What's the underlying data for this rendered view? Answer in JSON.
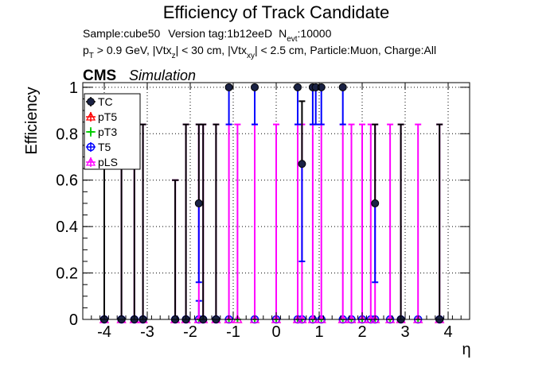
{
  "chart_data": {
    "type": "scatter",
    "title": "Efficiency of Track Candidate",
    "info_line1": {
      "sample": "Sample:cube50",
      "version": "Version tag:1b12eeD",
      "nevt_label": "N",
      "nevt_sub": "evt",
      "nevt_value": ":10000"
    },
    "info_line2": {
      "pt_p": "p",
      "pt_sub": "T",
      "pt_rest": " > 0.9 GeV, |Vtx",
      "vtxz_sub": "z",
      "vtxz_rest": "| < 30 cm, |Vtx",
      "vtxxy_sub": "xy",
      "vtxxy_rest": "| < 2.5 cm, Particle:Muon, Charge:All"
    },
    "cms_label": "CMS",
    "simulation_label": "Simulation",
    "xlabel": "η",
    "ylabel": "Efficiency",
    "xlim": [
      -4.5,
      4.5
    ],
    "ylim": [
      0,
      1.02
    ],
    "xticks": [
      "-4",
      "-3",
      "-2",
      "-1",
      "0",
      "1",
      "2",
      "3",
      "4"
    ],
    "yticks": [
      "0",
      "0.2",
      "0.4",
      "0.6",
      "0.8",
      "1"
    ],
    "grid": true,
    "legend_position": "top-left",
    "series": [
      {
        "name": "TC",
        "color": "#000000",
        "marker": "filled-circle",
        "points": [
          {
            "x": -4.0,
            "y": 0,
            "err_up": 0.84
          },
          {
            "x": -3.6,
            "y": 0,
            "err_up": 0.84
          },
          {
            "x": -3.3,
            "y": 0,
            "err_up": 0.84
          },
          {
            "x": -3.1,
            "y": 0,
            "err_up": 0.84
          },
          {
            "x": -2.35,
            "y": 0,
            "err_up": 0.6
          },
          {
            "x": -2.1,
            "y": 0,
            "err_up": 0.84
          },
          {
            "x": -1.8,
            "y": 0.5,
            "err_up": 0.34,
            "err_down": 0.34
          },
          {
            "x": -1.7,
            "y": 0,
            "err_up": 0.84
          },
          {
            "x": -1.4,
            "y": 0,
            "err_up": 0.84
          },
          {
            "x": -1.1,
            "y": 1,
            "err_down": 0.16
          },
          {
            "x": -0.5,
            "y": 1,
            "err_down": 0.16
          },
          {
            "x": 0.5,
            "y": 1,
            "err_down": 0.16
          },
          {
            "x": 0.6,
            "y": 0.67,
            "err_up": 0.27,
            "err_down": 0.42
          },
          {
            "x": 0.85,
            "y": 1,
            "err_down": 0.16
          },
          {
            "x": 0.92,
            "y": 1,
            "err_down": 0.16
          },
          {
            "x": 1.05,
            "y": 1,
            "err_down": 0.16
          },
          {
            "x": 1.55,
            "y": 1,
            "err_down": 0.16
          },
          {
            "x": 2.3,
            "y": 0.5,
            "err_up": 0.34,
            "err_down": 0.34
          },
          {
            "x": 2.9,
            "y": 0,
            "err_up": 0.84
          },
          {
            "x": 3.8,
            "y": 0,
            "err_up": 0.84
          }
        ]
      },
      {
        "name": "pT5",
        "color": "#ff0000",
        "marker": "open-triangle",
        "points": [
          {
            "x": -4.0,
            "y": 0
          },
          {
            "x": -3.6,
            "y": 0
          },
          {
            "x": -3.3,
            "y": 0
          },
          {
            "x": -3.1,
            "y": 0
          },
          {
            "x": -2.35,
            "y": 0
          },
          {
            "x": -2.1,
            "y": 0
          },
          {
            "x": -1.8,
            "y": 0
          },
          {
            "x": -1.7,
            "y": 0
          },
          {
            "x": -1.4,
            "y": 0
          },
          {
            "x": -1.1,
            "y": 0
          },
          {
            "x": -0.9,
            "y": 0
          },
          {
            "x": -0.5,
            "y": 0
          },
          {
            "x": 0.0,
            "y": 0
          },
          {
            "x": 0.5,
            "y": 0
          },
          {
            "x": 0.6,
            "y": 0
          },
          {
            "x": 0.85,
            "y": 0
          },
          {
            "x": 1.05,
            "y": 0
          },
          {
            "x": 1.55,
            "y": 0
          },
          {
            "x": 1.75,
            "y": 0
          },
          {
            "x": 2.0,
            "y": 0
          },
          {
            "x": 2.2,
            "y": 0
          },
          {
            "x": 2.3,
            "y": 0
          },
          {
            "x": 2.65,
            "y": 0
          },
          {
            "x": 2.9,
            "y": 0
          },
          {
            "x": 3.3,
            "y": 0
          },
          {
            "x": 3.8,
            "y": 0
          }
        ]
      },
      {
        "name": "pT3",
        "color": "#00cc00",
        "marker": "open-cross",
        "points": [
          {
            "x": -4.0,
            "y": 0
          },
          {
            "x": -3.6,
            "y": 0
          },
          {
            "x": -3.3,
            "y": 0
          },
          {
            "x": -3.1,
            "y": 0
          },
          {
            "x": -2.35,
            "y": 0
          },
          {
            "x": -2.1,
            "y": 0
          },
          {
            "x": -1.8,
            "y": 0
          },
          {
            "x": -1.7,
            "y": 0
          },
          {
            "x": -1.4,
            "y": 0
          },
          {
            "x": -1.1,
            "y": 0
          },
          {
            "x": -0.9,
            "y": 0
          },
          {
            "x": -0.5,
            "y": 0
          },
          {
            "x": 0.0,
            "y": 0
          },
          {
            "x": 0.5,
            "y": 0
          },
          {
            "x": 0.6,
            "y": 0
          },
          {
            "x": 0.85,
            "y": 0
          },
          {
            "x": 1.05,
            "y": 0
          },
          {
            "x": 1.55,
            "y": 0
          },
          {
            "x": 1.75,
            "y": 0
          },
          {
            "x": 2.0,
            "y": 0
          },
          {
            "x": 2.2,
            "y": 0
          },
          {
            "x": 2.3,
            "y": 0
          },
          {
            "x": 2.65,
            "y": 0
          },
          {
            "x": 2.9,
            "y": 0
          },
          {
            "x": 3.3,
            "y": 0
          },
          {
            "x": 3.8,
            "y": 0
          }
        ]
      },
      {
        "name": "T5",
        "color": "#0000ff",
        "marker": "open-circle",
        "points": [
          {
            "x": -4.0,
            "y": 0
          },
          {
            "x": -3.6,
            "y": 0
          },
          {
            "x": -3.3,
            "y": 0
          },
          {
            "x": -3.1,
            "y": 0
          },
          {
            "x": -2.35,
            "y": 0
          },
          {
            "x": -2.1,
            "y": 0
          },
          {
            "x": -1.8,
            "y": 0,
            "err_up": 0.08
          },
          {
            "x": -1.7,
            "y": 0
          },
          {
            "x": -1.4,
            "y": 0
          },
          {
            "x": -1.1,
            "y": 0
          },
          {
            "x": -0.5,
            "y": 0
          },
          {
            "x": 0.0,
            "y": 0
          },
          {
            "x": 0.5,
            "y": 0
          },
          {
            "x": 0.6,
            "y": 0
          },
          {
            "x": 0.85,
            "y": 0
          },
          {
            "x": 1.05,
            "y": 0
          },
          {
            "x": 1.55,
            "y": 0
          },
          {
            "x": 1.75,
            "y": 0
          },
          {
            "x": 2.0,
            "y": 0
          },
          {
            "x": 2.2,
            "y": 0
          },
          {
            "x": 2.3,
            "y": 0
          },
          {
            "x": 2.65,
            "y": 0
          },
          {
            "x": 2.9,
            "y": 0
          },
          {
            "x": 3.3,
            "y": 0
          },
          {
            "x": 3.8,
            "y": 0
          }
        ]
      },
      {
        "name": "pLS",
        "color": "#ff00ff",
        "marker": "open-triangle",
        "points": [
          {
            "x": -4.0,
            "y": 0,
            "err_up": 0.84
          },
          {
            "x": -3.6,
            "y": 0,
            "err_up": 0.84
          },
          {
            "x": -3.3,
            "y": 0,
            "err_up": 0.84
          },
          {
            "x": -3.1,
            "y": 0,
            "err_up": 0.84
          },
          {
            "x": -2.35,
            "y": 0,
            "err_up": 0.6
          },
          {
            "x": -2.1,
            "y": 0,
            "err_up": 0.84
          },
          {
            "x": -1.8,
            "y": 0,
            "err_up": 0.84
          },
          {
            "x": -1.7,
            "y": 0,
            "err_up": 0.84
          },
          {
            "x": -1.4,
            "y": 0,
            "err_up": 0.84
          },
          {
            "x": -1.1,
            "y": 0,
            "err_up": 0.84
          },
          {
            "x": -0.9,
            "y": 0,
            "err_up": 0.84
          },
          {
            "x": -0.5,
            "y": 0,
            "err_up": 0.84
          },
          {
            "x": 0.0,
            "y": 0,
            "err_up": 0.84
          },
          {
            "x": 0.5,
            "y": 0,
            "err_up": 0.84
          },
          {
            "x": 0.6,
            "y": 0,
            "err_up": 0.84
          },
          {
            "x": 0.85,
            "y": 0,
            "err_up": 0.84
          },
          {
            "x": 1.05,
            "y": 0,
            "err_up": 0.84
          },
          {
            "x": 1.55,
            "y": 0,
            "err_up": 0.84
          },
          {
            "x": 1.75,
            "y": 0,
            "err_up": 0.84
          },
          {
            "x": 2.0,
            "y": 0,
            "err_up": 0.84
          },
          {
            "x": 2.2,
            "y": 0,
            "err_up": 0.84
          },
          {
            "x": 2.3,
            "y": 0,
            "err_up": 0.84
          },
          {
            "x": 2.65,
            "y": 0,
            "err_up": 0.84
          },
          {
            "x": 2.9,
            "y": 0,
            "err_up": 0.84
          },
          {
            "x": 3.3,
            "y": 0,
            "err_up": 0.84
          },
          {
            "x": 3.8,
            "y": 0,
            "err_up": 0.84
          }
        ]
      }
    ]
  }
}
